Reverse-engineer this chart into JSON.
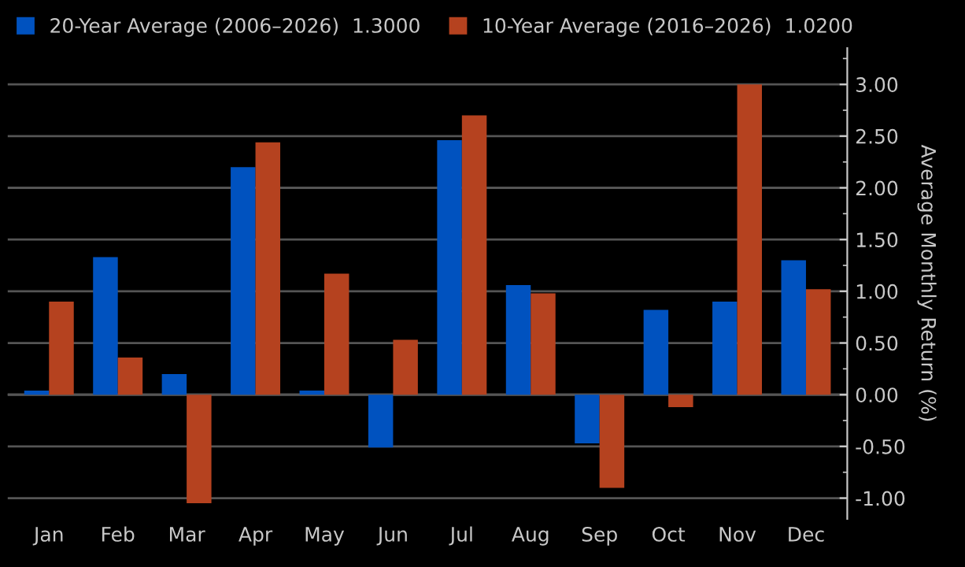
{
  "chart_data": {
    "type": "bar",
    "categories": [
      "Jan",
      "Feb",
      "Mar",
      "Apr",
      "May",
      "Jun",
      "Jul",
      "Aug",
      "Sep",
      "Oct",
      "Nov",
      "Dec"
    ],
    "series": [
      {
        "name": "20-Year Average (2006–2026)  1.3000",
        "color": "#0052bf",
        "values": [
          0.04,
          1.33,
          0.2,
          2.2,
          0.04,
          -0.51,
          2.46,
          1.06,
          -0.47,
          0.82,
          0.9,
          1.3
        ]
      },
      {
        "name": "10-Year Average (2016–2026)  1.0200",
        "color": "#b5421f",
        "values": [
          0.9,
          0.36,
          -1.05,
          2.44,
          1.17,
          0.53,
          2.7,
          0.98,
          -0.9,
          -0.12,
          3.0,
          1.02
        ]
      }
    ],
    "ylabel": "Average Monthly Return (%)",
    "ylim": [
      -1.2,
      3.35
    ],
    "yticks": [
      {
        "value": -1.0,
        "label": "-1.00"
      },
      {
        "value": -0.5,
        "label": "-0.50"
      },
      {
        "value": 0.0,
        "label": "0.00"
      },
      {
        "value": 0.5,
        "label": "0.50"
      },
      {
        "value": 1.0,
        "label": "1.00"
      },
      {
        "value": 1.5,
        "label": "1.50"
      },
      {
        "value": 2.0,
        "label": "2.00"
      },
      {
        "value": 2.5,
        "label": "2.50"
      },
      {
        "value": 3.0,
        "label": "3.00"
      }
    ],
    "grid": "y",
    "legend": "top left"
  }
}
